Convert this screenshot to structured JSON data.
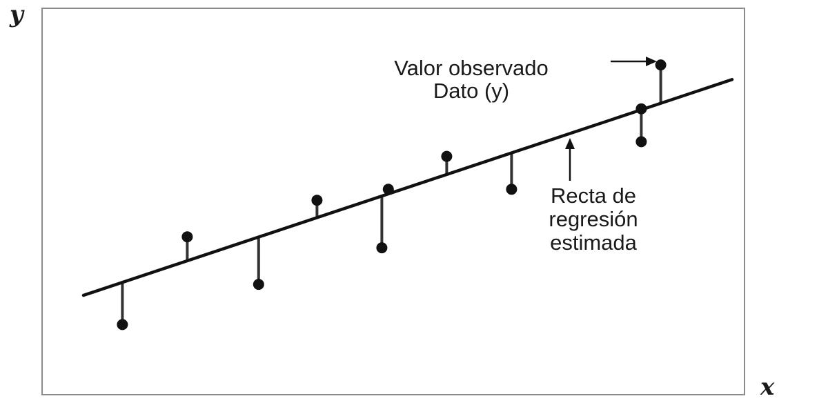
{
  "axes": {
    "x_label": "x",
    "y_label": "y"
  },
  "annotations": {
    "observed_line1": "Valor observado",
    "observed_line2": "Dato (y)",
    "regression_line1": "Recta de",
    "regression_line2": "regresión",
    "regression_line3": "estimada"
  },
  "chart_data": {
    "type": "scatter",
    "title": "",
    "xlabel": "x",
    "ylabel": "y",
    "regression_line": {
      "x": [
        0,
        10
      ],
      "y": [
        1.0,
        6.9
      ]
    },
    "points": [
      {
        "x": 0.6,
        "y_observed": 0.2,
        "y_fitted": 1.35
      },
      {
        "x": 1.6,
        "y_observed": 2.6,
        "y_fitted": 1.95
      },
      {
        "x": 2.7,
        "y_observed": 1.3,
        "y_fitted": 2.6
      },
      {
        "x": 3.6,
        "y_observed": 3.6,
        "y_fitted": 3.15
      },
      {
        "x": 4.6,
        "y_observed": 2.3,
        "y_fitted": 3.7
      },
      {
        "x": 4.7,
        "y_observed": 3.9,
        "y_fitted": 3.75
      },
      {
        "x": 5.6,
        "y_observed": 4.8,
        "y_fitted": 4.3
      },
      {
        "x": 6.6,
        "y_observed": 3.9,
        "y_fitted": 4.9
      },
      {
        "x": 8.6,
        "y_observed": 5.2,
        "y_fitted": 6.05
      },
      {
        "x": 8.6,
        "y_observed": 6.1,
        "y_fitted": 6.05
      },
      {
        "x": 8.9,
        "y_observed": 7.3,
        "y_fitted": 6.25
      }
    ]
  },
  "colors": {
    "ink": "#111111",
    "frame": "#8a8a8a",
    "background": "#ffffff"
  }
}
